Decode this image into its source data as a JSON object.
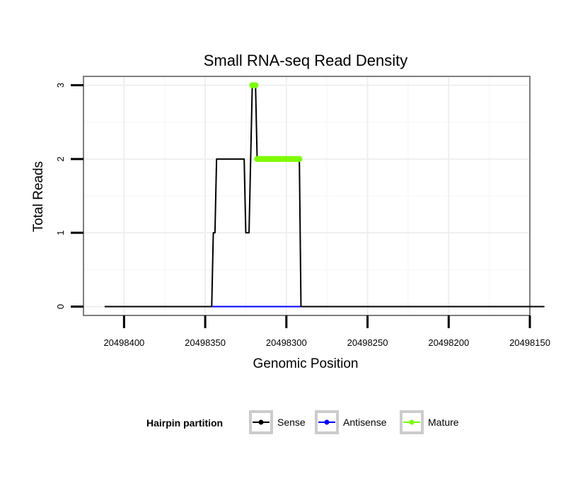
{
  "chart_data": {
    "type": "line",
    "title": "Small RNA-seq Read Density",
    "xlabel": "Genomic Position",
    "ylabel": "Total Reads",
    "xlim": [
      20498425,
      20498150
    ],
    "x_reversed": true,
    "ylim": [
      -0.12,
      3.12
    ],
    "x_ticks": [
      20498400,
      20498350,
      20498300,
      20498250,
      20498200,
      20498150
    ],
    "x_tick_labels": [
      "20498400",
      "20498350",
      "20498300",
      "20498250",
      "20498200",
      "20498150"
    ],
    "y_ticks": [
      0,
      1,
      2,
      3
    ],
    "y_tick_labels": [
      "0",
      "1",
      "2",
      "3"
    ],
    "grid": true,
    "legend": {
      "title": "Hairpin partition",
      "position": "bottom",
      "entries": [
        {
          "name": "Sense",
          "color": "#000000"
        },
        {
          "name": "Antisense",
          "color": "#0000ff"
        },
        {
          "name": "Mature",
          "color": "#7cfc00"
        }
      ]
    },
    "series": [
      {
        "name": "Sense",
        "color": "#000000",
        "style": "line",
        "x": [
          20498412,
          20498346,
          20498345,
          20498344,
          20498343,
          20498342,
          20498326,
          20498325,
          20498324,
          20498323,
          20498321,
          20498319,
          20498318,
          20498317,
          20498292,
          20498291,
          20498141
        ],
        "y": [
          0,
          0,
          1,
          1,
          2,
          2,
          2,
          1,
          1,
          1,
          3,
          3,
          2,
          2,
          2,
          0,
          0
        ]
      },
      {
        "name": "Antisense",
        "color": "#0000ff",
        "style": "line",
        "x": [
          20498346,
          20498291
        ],
        "y": [
          0,
          0
        ]
      },
      {
        "name": "Mature",
        "color": "#7cfc00",
        "style": "points",
        "x": [
          20498321,
          20498320,
          20498319,
          20498318,
          20498317,
          20498316,
          20498315,
          20498314,
          20498313,
          20498312,
          20498311,
          20498310,
          20498309,
          20498308,
          20498307,
          20498306,
          20498305,
          20498304,
          20498303,
          20498302,
          20498301,
          20498300,
          20498299,
          20498298,
          20498297,
          20498296,
          20498295,
          20498294,
          20498293,
          20498292
        ],
        "y": [
          3,
          3,
          3,
          2,
          2,
          2,
          2,
          2,
          2,
          2,
          2,
          2,
          2,
          2,
          2,
          2,
          2,
          2,
          2,
          2,
          2,
          2,
          2,
          2,
          2,
          2,
          2,
          2,
          2,
          2
        ]
      }
    ]
  }
}
